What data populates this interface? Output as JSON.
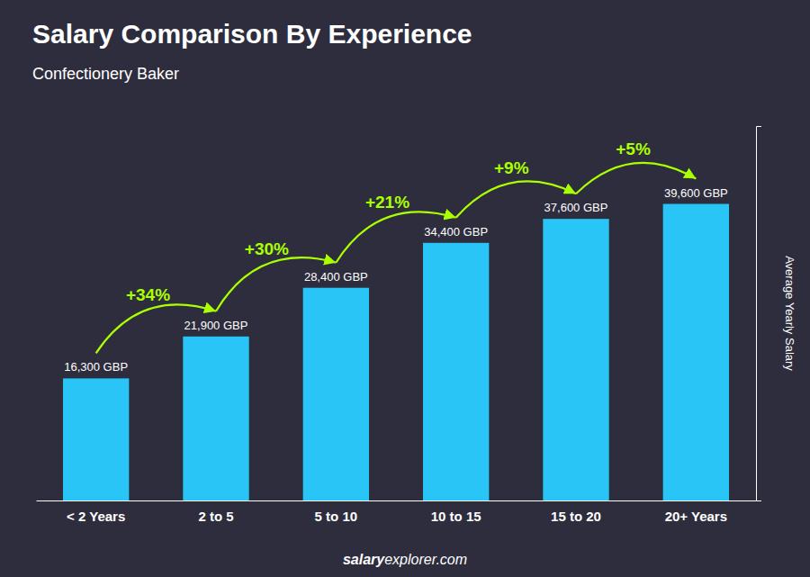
{
  "chart_data": {
    "type": "bar",
    "title": "Salary Comparison By Experience",
    "subtitle": "Confectionery Baker",
    "categories": [
      "< 2 Years",
      "2 to 5",
      "5 to 10",
      "10 to 15",
      "15 to 20",
      "20+ Years"
    ],
    "values": [
      16300,
      21900,
      28400,
      34400,
      37600,
      39600
    ],
    "value_labels": [
      "16,300 GBP",
      "21,900 GBP",
      "28,400 GBP",
      "34,400 GBP",
      "37,600 GBP",
      "39,600 GBP"
    ],
    "data_labels": true,
    "annotations": [
      "+34%",
      "+30%",
      "+21%",
      "+9%",
      "+5%"
    ],
    "y_label": "Average Yearly Salary",
    "footer": [
      "salary",
      "explorer.com"
    ],
    "color": "#29C5F6",
    "ylim": [
      0,
      50000
    ],
    "tick_labels": "x"
  }
}
